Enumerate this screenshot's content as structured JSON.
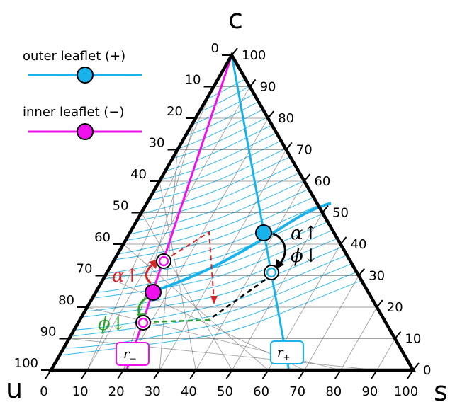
{
  "vertices": {
    "top": "c",
    "left": "u",
    "right": "s"
  },
  "ticks": {
    "bottom": [
      "0",
      "10",
      "20",
      "30",
      "40",
      "50",
      "60",
      "70",
      "80",
      "90",
      "100"
    ],
    "left": [
      "0",
      "10",
      "20",
      "30",
      "40",
      "50",
      "60",
      "70",
      "80",
      "90",
      "100"
    ],
    "right": [
      "100",
      "90",
      "80",
      "70",
      "60",
      "50",
      "40",
      "30",
      "20",
      "10",
      "0"
    ]
  },
  "legend": {
    "outer": {
      "label": "outer leaflet (+)",
      "color": "#1ab2ea"
    },
    "inner": {
      "label": "inner leaflet (−)",
      "color": "#ee11ee"
    }
  },
  "annotations": {
    "outer_alpha": "α↑",
    "outer_phi": "ϕ↓",
    "inner_alpha": "α↑",
    "inner_phi": "ϕ↓"
  },
  "boxes": {
    "r_minus": {
      "main": "r",
      "sub": "−"
    },
    "r_plus": {
      "main": "r",
      "sub": "+"
    }
  },
  "colors": {
    "outer": "#1ab2ea",
    "inner": "#ee11ee",
    "alpha_arrow": "#d62728",
    "phi_arrow": "#2ca02c",
    "outer_arrow": "#000000"
  }
}
